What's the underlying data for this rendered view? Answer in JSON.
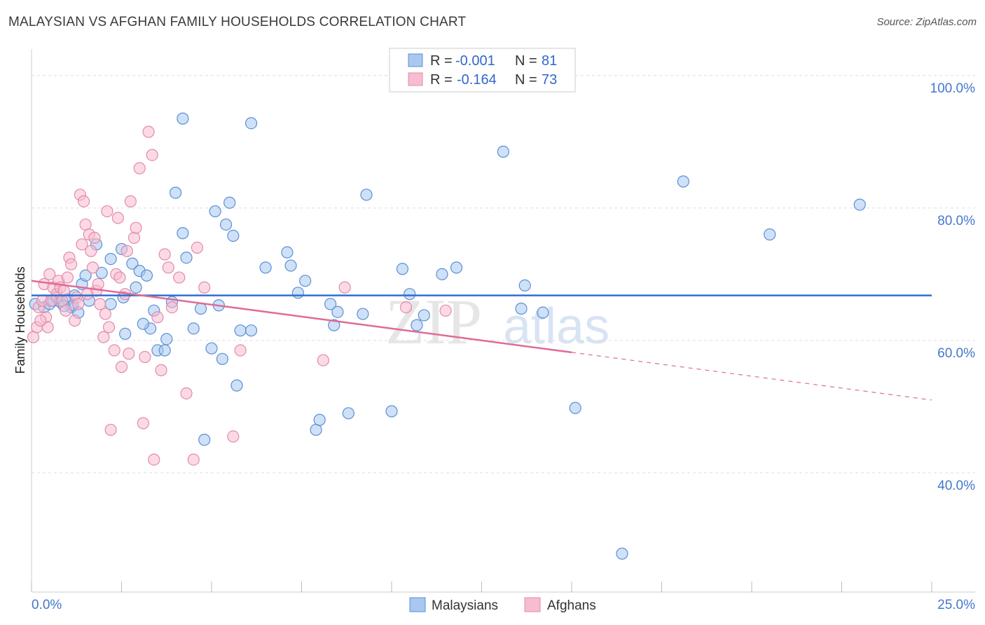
{
  "title": "MALAYSIAN VS AFGHAN FAMILY HOUSEHOLDS CORRELATION CHART",
  "source": "Source: ZipAtlas.com",
  "watermark": {
    "zip": "ZIP",
    "atlas": "atlas"
  },
  "colors": {
    "malaysians_fill": "#a8c8f0",
    "malaysians_stroke": "#5b8fd6",
    "malaysians_line": "#2f6fd0",
    "afghans_fill": "#f7bcd0",
    "afghans_stroke": "#e48aaa",
    "afghans_line": "#e06a96",
    "grid": "#dddddd",
    "tick_text": "#4477cc"
  },
  "legend": {
    "rows": [
      {
        "r_label": "R =",
        "r_value": "-0.001",
        "n_label": "N =",
        "n_value": "81"
      },
      {
        "r_label": "R =",
        "r_value": "-0.164",
        "n_label": "N =",
        "n_value": "73"
      }
    ]
  },
  "bottom_legend": [
    "Malaysians",
    "Afghans"
  ],
  "chart_data": {
    "type": "scatter",
    "title": "MALAYSIAN VS AFGHAN FAMILY HOUSEHOLDS CORRELATION CHART",
    "xlabel": "",
    "ylabel": "Family Households",
    "xlim": [
      0,
      25
    ],
    "ylim": [
      22,
      104
    ],
    "x_tick_labels": [
      "0.0%",
      "25.0%"
    ],
    "y_ticks": [
      40,
      60,
      80,
      100
    ],
    "y_tick_labels": [
      "40.0%",
      "60.0%",
      "80.0%",
      "100.0%"
    ],
    "grid": true,
    "legend_position": "top-center",
    "series": [
      {
        "name": "Malaysians",
        "r": -0.001,
        "n": 81,
        "trend": {
          "x0": 0,
          "y0": 66.8,
          "x1": 25,
          "y1": 66.8,
          "solid_until": 25
        },
        "points": [
          [
            0.1,
            65.5
          ],
          [
            0.35,
            65.0
          ],
          [
            0.5,
            65.5
          ],
          [
            0.6,
            66.0
          ],
          [
            0.7,
            66.5
          ],
          [
            0.8,
            65.8
          ],
          [
            1.0,
            66.2
          ],
          [
            1.1,
            65.0
          ],
          [
            1.2,
            66.8
          ],
          [
            1.15,
            65.3
          ],
          [
            1.4,
            68.5
          ],
          [
            1.5,
            69.8
          ],
          [
            1.8,
            74.5
          ],
          [
            1.95,
            70.2
          ],
          [
            2.2,
            72.3
          ],
          [
            2.5,
            73.8
          ],
          [
            2.55,
            66.5
          ],
          [
            2.8,
            71.6
          ],
          [
            2.9,
            68.0
          ],
          [
            3.0,
            70.5
          ],
          [
            3.2,
            69.8
          ],
          [
            3.3,
            61.8
          ],
          [
            3.5,
            58.5
          ],
          [
            3.7,
            58.5
          ],
          [
            3.75,
            60.2
          ],
          [
            3.9,
            65.8
          ],
          [
            4.0,
            82.3
          ],
          [
            4.2,
            76.2
          ],
          [
            4.3,
            72.5
          ],
          [
            4.5,
            61.8
          ],
          [
            4.7,
            64.8
          ],
          [
            4.8,
            45.0
          ],
          [
            5.0,
            58.8
          ],
          [
            5.1,
            79.5
          ],
          [
            5.2,
            65.3
          ],
          [
            5.3,
            57.2
          ],
          [
            5.4,
            77.5
          ],
          [
            5.5,
            80.8
          ],
          [
            5.6,
            75.8
          ],
          [
            5.7,
            53.2
          ],
          [
            5.8,
            61.5
          ],
          [
            6.1,
            61.5
          ],
          [
            6.5,
            71.0
          ],
          [
            7.1,
            73.3
          ],
          [
            7.2,
            71.3
          ],
          [
            7.4,
            67.2
          ],
          [
            7.6,
            69.0
          ],
          [
            7.9,
            46.5
          ],
          [
            8.0,
            48.0
          ],
          [
            8.3,
            65.5
          ],
          [
            8.4,
            62.3
          ],
          [
            8.5,
            64.3
          ],
          [
            8.8,
            49.0
          ],
          [
            9.2,
            64.0
          ],
          [
            9.3,
            82.0
          ],
          [
            10.0,
            49.3
          ],
          [
            10.3,
            70.8
          ],
          [
            10.5,
            67.0
          ],
          [
            10.7,
            62.3
          ],
          [
            10.9,
            63.8
          ],
          [
            11.4,
            70.0
          ],
          [
            11.8,
            71.0
          ],
          [
            13.1,
            88.5
          ],
          [
            13.6,
            64.8
          ],
          [
            13.7,
            68.3
          ],
          [
            14.2,
            64.2
          ],
          [
            15.1,
            49.8
          ],
          [
            16.4,
            27.8
          ],
          [
            18.1,
            84.0
          ],
          [
            20.5,
            76.0
          ],
          [
            23.0,
            80.5
          ],
          [
            4.2,
            93.5
          ],
          [
            6.1,
            92.8
          ],
          [
            2.2,
            65.5
          ],
          [
            1.6,
            66.0
          ],
          [
            0.9,
            65.2
          ],
          [
            3.4,
            64.5
          ],
          [
            2.6,
            61.0
          ],
          [
            3.1,
            62.5
          ],
          [
            1.3,
            64.2
          ]
        ]
      },
      {
        "name": "Afghans",
        "r": -0.164,
        "n": 73,
        "trend": {
          "x0": 0,
          "y0": 69.0,
          "x1": 25,
          "y1": 51.0,
          "solid_until": 15.0
        },
        "points": [
          [
            0.05,
            60.5
          ],
          [
            0.15,
            62.0
          ],
          [
            0.2,
            65.0
          ],
          [
            0.3,
            66.0
          ],
          [
            0.35,
            68.5
          ],
          [
            0.4,
            63.5
          ],
          [
            0.45,
            62.0
          ],
          [
            0.5,
            70.0
          ],
          [
            0.6,
            68.0
          ],
          [
            0.7,
            67.0
          ],
          [
            0.75,
            69.0
          ],
          [
            0.8,
            68.0
          ],
          [
            0.85,
            66.0
          ],
          [
            0.9,
            67.5
          ],
          [
            0.95,
            64.5
          ],
          [
            1.0,
            69.5
          ],
          [
            1.05,
            72.5
          ],
          [
            1.1,
            71.5
          ],
          [
            1.2,
            63.0
          ],
          [
            1.25,
            66.5
          ],
          [
            1.3,
            65.5
          ],
          [
            1.35,
            82.0
          ],
          [
            1.45,
            81.0
          ],
          [
            1.5,
            77.5
          ],
          [
            1.6,
            76.0
          ],
          [
            1.65,
            73.5
          ],
          [
            1.7,
            71.0
          ],
          [
            1.75,
            75.5
          ],
          [
            1.8,
            67.5
          ],
          [
            1.85,
            68.5
          ],
          [
            1.9,
            65.5
          ],
          [
            2.0,
            60.5
          ],
          [
            2.05,
            64.0
          ],
          [
            2.1,
            79.5
          ],
          [
            2.15,
            62.0
          ],
          [
            2.2,
            46.5
          ],
          [
            2.3,
            58.5
          ],
          [
            2.35,
            70.0
          ],
          [
            2.45,
            69.5
          ],
          [
            2.5,
            56.0
          ],
          [
            2.6,
            67.0
          ],
          [
            2.65,
            73.5
          ],
          [
            2.75,
            81.0
          ],
          [
            2.85,
            75.5
          ],
          [
            2.9,
            77.0
          ],
          [
            3.0,
            86.0
          ],
          [
            3.1,
            47.5
          ],
          [
            3.15,
            57.5
          ],
          [
            3.25,
            91.5
          ],
          [
            3.35,
            88.0
          ],
          [
            3.4,
            42.0
          ],
          [
            3.5,
            63.5
          ],
          [
            3.6,
            55.5
          ],
          [
            3.7,
            73.0
          ],
          [
            3.8,
            71.0
          ],
          [
            4.1,
            69.5
          ],
          [
            4.3,
            52.0
          ],
          [
            4.5,
            42.0
          ],
          [
            4.6,
            74.0
          ],
          [
            4.8,
            68.0
          ],
          [
            5.6,
            45.5
          ],
          [
            5.8,
            58.5
          ],
          [
            8.1,
            57.0
          ],
          [
            8.7,
            68.0
          ],
          [
            10.4,
            65.0
          ],
          [
            11.5,
            64.5
          ],
          [
            1.4,
            74.5
          ],
          [
            2.4,
            78.5
          ],
          [
            1.55,
            67.0
          ],
          [
            0.55,
            66.0
          ],
          [
            3.9,
            65.0
          ],
          [
            2.7,
            58.0
          ],
          [
            0.25,
            63.0
          ]
        ]
      }
    ]
  }
}
